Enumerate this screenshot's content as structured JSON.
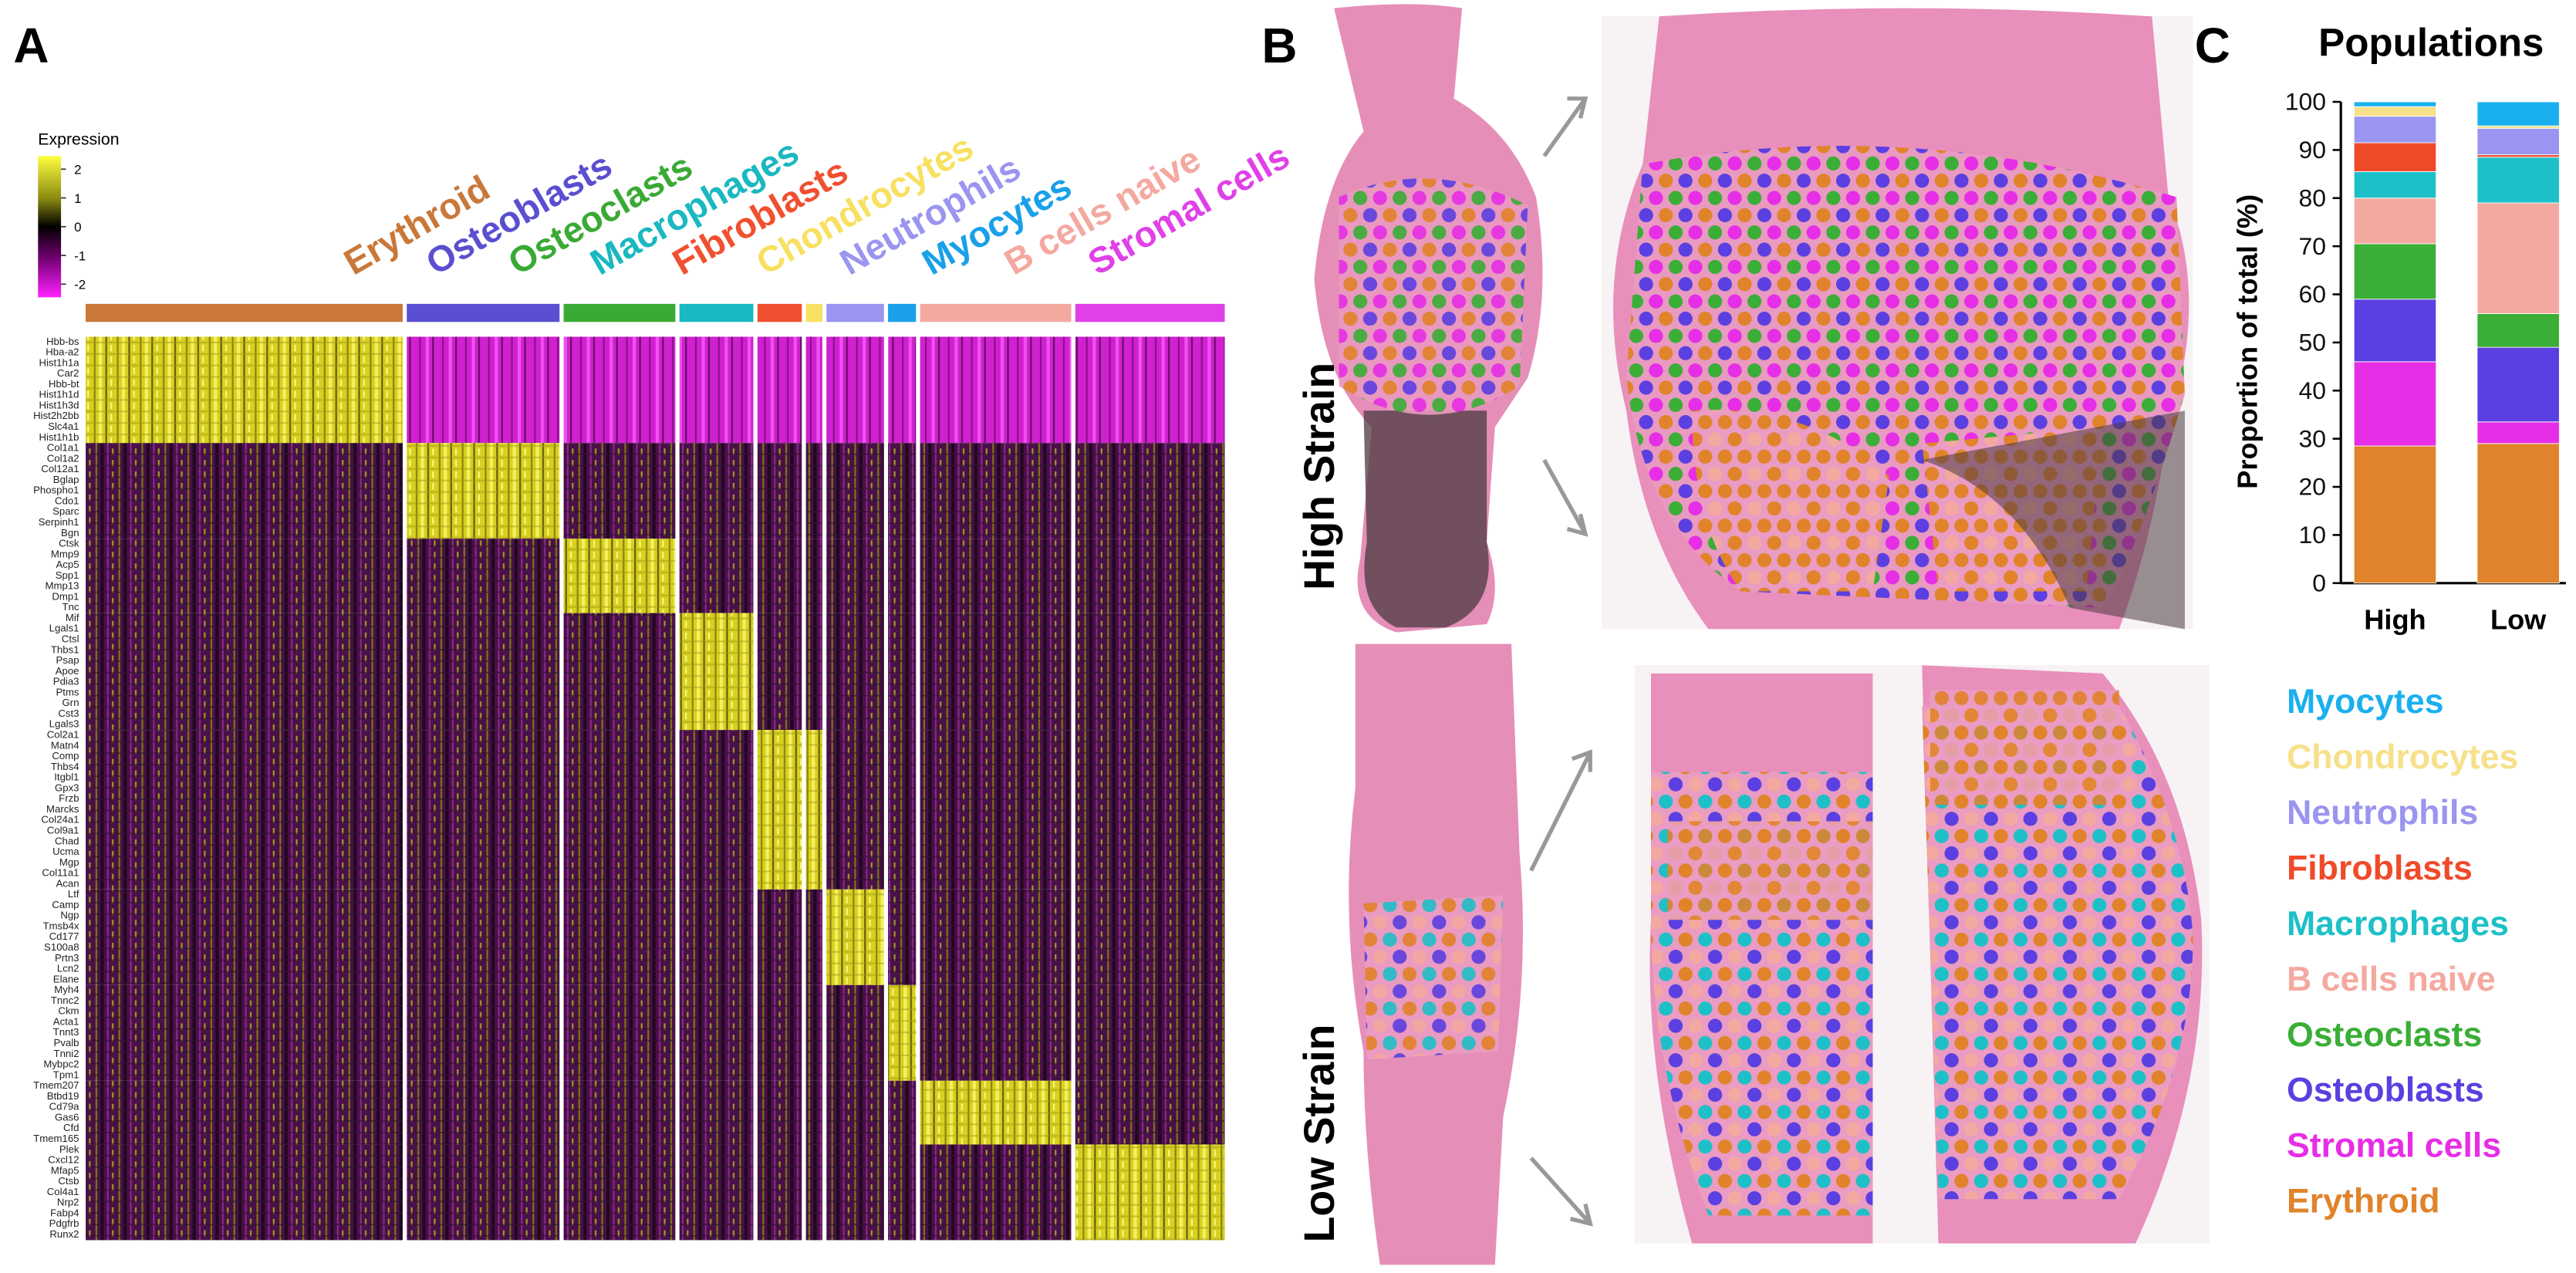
{
  "panel_a": {
    "label": "A",
    "colorbar": {
      "title": "Expression",
      "ticks": [
        2,
        1,
        0,
        -1,
        -2
      ]
    },
    "clusters": [
      {
        "name": "Erythroid",
        "color": "#c9783a"
      },
      {
        "name": "Osteoblasts",
        "color": "#5a4fd0"
      },
      {
        "name": "Osteoclasts",
        "color": "#3aaa35"
      },
      {
        "name": "Macrophages",
        "color": "#1ab8c0"
      },
      {
        "name": "Fibroblasts",
        "color": "#f05030"
      },
      {
        "name": "Chondrocytes",
        "color": "#f8e060"
      },
      {
        "name": "Neutrophils",
        "color": "#9a95f0"
      },
      {
        "name": "Myocytes",
        "color": "#1aa0e8"
      },
      {
        "name": "B cells naive",
        "color": "#f4a9a0"
      },
      {
        "name": "Stromal cells",
        "color": "#e040e8"
      }
    ],
    "genes": [
      "Hbb-bs",
      "Hba-a2",
      "Hist1h1a",
      "Car2",
      "Hbb-bt",
      "Hist1h1d",
      "Hist1h3d",
      "Hist2h2bb",
      "Slc4a1",
      "Hist1h1b",
      "Col1a1",
      "Col1a2",
      "Col12a1",
      "Bglap",
      "Phospho1",
      "Cdo1",
      "Sparc",
      "Serpinh1",
      "Bgn",
      "Ctsk",
      "Mmp9",
      "Acp5",
      "Spp1",
      "Mmp13",
      "Dmp1",
      "Tnc",
      "Mif",
      "Lgals1",
      "Ctsl",
      "Thbs1",
      "Psap",
      "Apoe",
      "Pdia3",
      "Ptms",
      "Grn",
      "Cst3",
      "Lgals3",
      "Col2a1",
      "Matn4",
      "Comp",
      "Thbs4",
      "Itgbl1",
      "Gpx3",
      "Frzb",
      "Marcks",
      "Col24a1",
      "Col9a1",
      "Chad",
      "Ucma",
      "Mgp",
      "Col11a1",
      "Acan",
      "Ltf",
      "Camp",
      "Ngp",
      "Tmsb4x",
      "Cd177",
      "S100a8",
      "Prtn3",
      "Lcn2",
      "Elane",
      "Myh4",
      "Tnnc2",
      "Ckm",
      "Acta1",
      "Tnnt3",
      "Pvalb",
      "Tnni2",
      "Mybpc2",
      "Tpm1",
      "Tmem207",
      "Btbd19",
      "Cd79a",
      "Gas6",
      "Cfd",
      "Tmem165",
      "Plek",
      "Cxcl12",
      "Mfap5",
      "Ctsb",
      "Col4a1",
      "Nrp2",
      "Fabp4",
      "Pdgfrb",
      "Runx2"
    ]
  },
  "panel_b": {
    "label": "B",
    "rows": [
      "High Strain",
      "Low Strain"
    ]
  },
  "chart_data": {
    "type": "bar",
    "stacked": true,
    "label": "C",
    "title": "Populations",
    "categories": [
      "High",
      "Low"
    ],
    "ylabel": "Proportion of total (%)",
    "ylim": [
      0,
      100
    ],
    "yticks": [
      0,
      10,
      20,
      30,
      40,
      50,
      60,
      70,
      80,
      90,
      100
    ],
    "series": [
      {
        "name": "Erythroid",
        "color": "#e0832a",
        "values": [
          28.5,
          29
        ]
      },
      {
        "name": "Stromal cells",
        "color": "#e62ee6",
        "values": [
          17.5,
          4.5
        ]
      },
      {
        "name": "Osteoblasts",
        "color": "#5b3fe0",
        "values": [
          13,
          15.5
        ]
      },
      {
        "name": "Osteoclasts",
        "color": "#3aae36",
        "values": [
          11.5,
          7
        ]
      },
      {
        "name": "B cells naive",
        "color": "#f4a9a0",
        "values": [
          9.5,
          23
        ]
      },
      {
        "name": "Macrophages",
        "color": "#1ec0c8",
        "values": [
          5.5,
          9.5
        ]
      },
      {
        "name": "Fibroblasts",
        "color": "#ef4a2a",
        "values": [
          6,
          0.5
        ]
      },
      {
        "name": "Neutrophils",
        "color": "#9a95f0",
        "values": [
          5.5,
          5.5
        ]
      },
      {
        "name": "Chondrocytes",
        "color": "#f7e08a",
        "values": [
          2,
          0.5
        ]
      },
      {
        "name": "Myocytes",
        "color": "#1ab0ef",
        "values": [
          1,
          5
        ]
      }
    ]
  }
}
